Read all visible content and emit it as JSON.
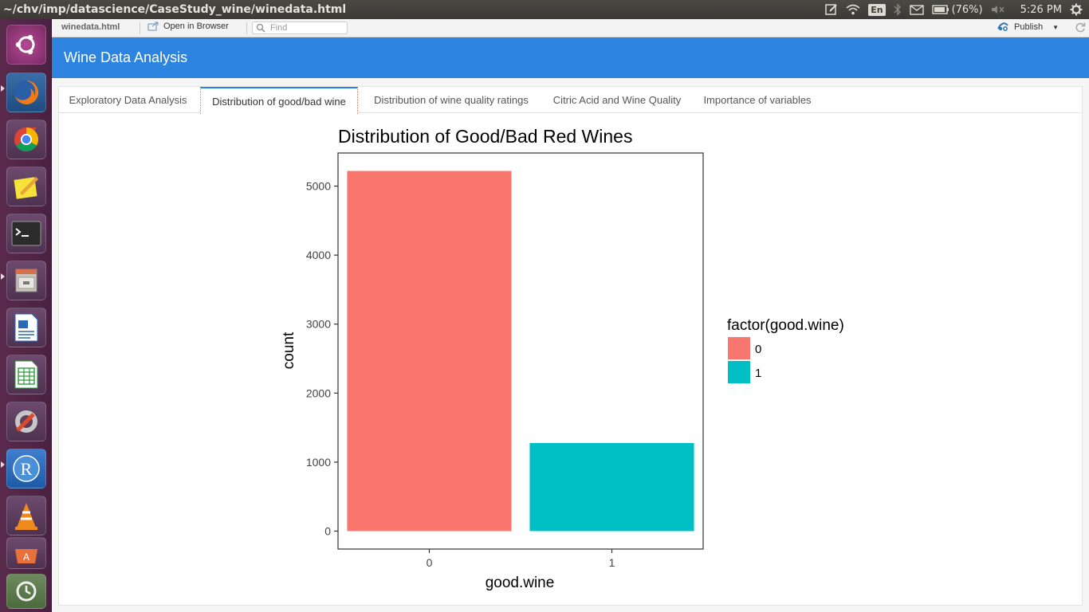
{
  "topbar": {
    "path": "~/chv/imp/datascience/CaseStudy_wine/winedata.html",
    "keyboard": "En",
    "battery": "(76%)",
    "time": "5:26 PM"
  },
  "launcher": {
    "apps": [
      "ubuntu-dash",
      "firefox",
      "chrome",
      "text-editor",
      "terminal",
      "files",
      "libreoffice-writer",
      "libreoffice-calc",
      "system-settings",
      "rstudio",
      "vlc",
      "software-center",
      "backup"
    ]
  },
  "viewer": {
    "filename": "winedata.html",
    "open_browser": "Open in Browser",
    "find_placeholder": "Find",
    "publish": "Publish"
  },
  "app": {
    "title": "Wine Data Analysis",
    "tabs": [
      {
        "label": "Exploratory Data Analysis"
      },
      {
        "label": "Distribution of good/bad wine"
      },
      {
        "label": "Distribution of wine quality ratings"
      },
      {
        "label": "Citric Acid and Wine Quality"
      },
      {
        "label": "Importance of variables"
      }
    ],
    "active_tab": 1
  },
  "chart_data": {
    "type": "bar",
    "title": "Distribution of Good/Bad Red Wines",
    "xlabel": "good.wine",
    "ylabel": "count",
    "categories": [
      "0",
      "1"
    ],
    "values": [
      5220,
      1277
    ],
    "ylim": [
      -260,
      5480
    ],
    "yticks": [
      0,
      1000,
      2000,
      3000,
      4000,
      5000
    ],
    "colors": [
      "#F8766D",
      "#00BFC4"
    ],
    "legend": {
      "title": "factor(good.wine)",
      "entries": [
        "0",
        "1"
      ],
      "position": "right"
    },
    "grid": false
  }
}
